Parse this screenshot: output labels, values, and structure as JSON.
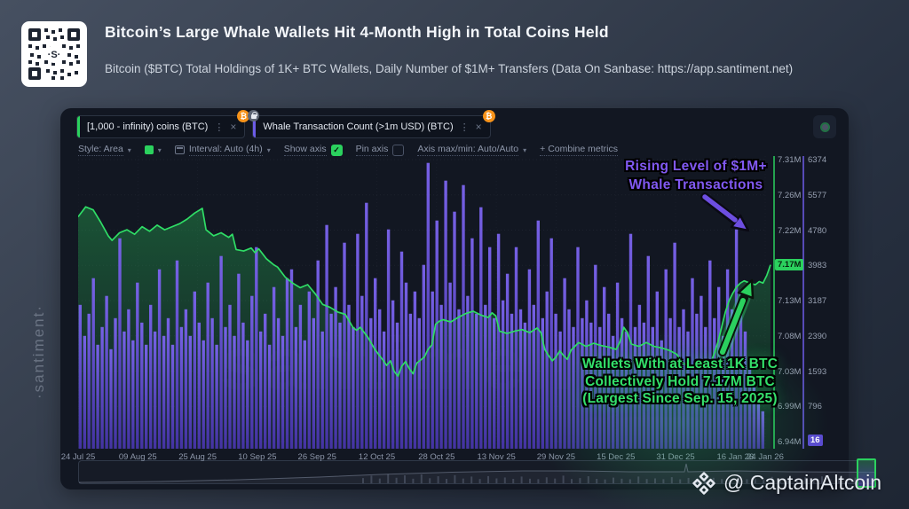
{
  "header": {
    "title": "Bitcoin’s Large Whale Wallets Hit 4-Month High in Total Coins Held",
    "subtitle": "Bitcoin ($BTC) Total Holdings of 1K+ BTC Wallets, Daily Number of $1M+ Transfers (Data On Sanbase: https://app.santiment.net)"
  },
  "panel": {
    "tabs": [
      {
        "label": "[1,000 - infinity) coins (BTC)",
        "accent": "#2bd15e",
        "badge": "₿",
        "locked": false
      },
      {
        "label": "Whale Transaction Count (>1m USD) (BTC)",
        "accent": "#6c5ce7",
        "badge": "₿",
        "locked": true
      }
    ],
    "toolbar": {
      "style_label": "Style: Area",
      "swatch_color": "#2bd15e",
      "interval_label": "Interval: Auto (4h)",
      "show_axis_label": "Show axis",
      "show_axis_checked": true,
      "pin_axis_label": "Pin axis",
      "pin_axis_checked": false,
      "axis_minmax_label": "Axis max/min: Auto/Auto",
      "combine_label": "+ Combine metrics"
    }
  },
  "chart_data": {
    "type": "area+bar",
    "x_range_days": 184,
    "x_tick_days": [
      0,
      16,
      32,
      48,
      64,
      80,
      96,
      112,
      128,
      144,
      160,
      176,
      184
    ],
    "x_tick_labels": [
      "24 Jul 25",
      "09 Aug 25",
      "25 Aug 25",
      "10 Sep 25",
      "26 Sep 25",
      "12 Oct 25",
      "28 Oct 25",
      "13 Nov 25",
      "29 Nov 25",
      "15 Dec 25",
      "31 Dec 25",
      "16 Jan 26",
      "24 Jan 26"
    ],
    "axes": {
      "holdings": {
        "color": "#2bd15e",
        "min": 6.94,
        "max": 7.31,
        "tick_labels": [
          "7.31M",
          "7.26M",
          "7.22M",
          "7.17M",
          "7.13M",
          "7.08M",
          "7.03M",
          "6.99M",
          "6.94M"
        ],
        "highlight_label": "7.17M",
        "current_value_m": 7.17
      },
      "transactions": {
        "color": "#6c5ce7",
        "min": 16,
        "max": 6374,
        "tick_labels": [
          "6374",
          "5577",
          "4780",
          "3983",
          "3187",
          "2390",
          "1593",
          "796",
          "16"
        ],
        "lowlight_label": "16"
      }
    },
    "series": [
      {
        "name": "[1,000 - infinity) coins (BTC)",
        "type": "area",
        "color": "#2bd15e",
        "unit": "M BTC",
        "points": [
          [
            0,
            7.235
          ],
          [
            2,
            7.248
          ],
          [
            4,
            7.244
          ],
          [
            6,
            7.228
          ],
          [
            8,
            7.21
          ],
          [
            9,
            7.204
          ],
          [
            11,
            7.214
          ],
          [
            13,
            7.218
          ],
          [
            15,
            7.212
          ],
          [
            17,
            7.222
          ],
          [
            19,
            7.216
          ],
          [
            21,
            7.224
          ],
          [
            23,
            7.218
          ],
          [
            25,
            7.222
          ],
          [
            27,
            7.226
          ],
          [
            29,
            7.232
          ],
          [
            31,
            7.24
          ],
          [
            33,
            7.246
          ],
          [
            34,
            7.218
          ],
          [
            36,
            7.21
          ],
          [
            38,
            7.214
          ],
          [
            40,
            7.208
          ],
          [
            41,
            7.212
          ],
          [
            42,
            7.192
          ],
          [
            44,
            7.19
          ],
          [
            46,
            7.194
          ],
          [
            47,
            7.188
          ],
          [
            48,
            7.193
          ],
          [
            50,
            7.18
          ],
          [
            51,
            7.176
          ],
          [
            52,
            7.172
          ],
          [
            53,
            7.169
          ],
          [
            55,
            7.156
          ],
          [
            57,
            7.148
          ],
          [
            59,
            7.142
          ],
          [
            61,
            7.146
          ],
          [
            63,
            7.134
          ],
          [
            65,
            7.12
          ],
          [
            67,
            7.116
          ],
          [
            69,
            7.11
          ],
          [
            71,
            7.107
          ],
          [
            73,
            7.09
          ],
          [
            74,
            7.086
          ],
          [
            75,
            7.09
          ],
          [
            77,
            7.077
          ],
          [
            79,
            7.06
          ],
          [
            81,
            7.047
          ],
          [
            82,
            7.04
          ],
          [
            83,
            7.046
          ],
          [
            84,
            7.032
          ],
          [
            85,
            7.026
          ],
          [
            86,
            7.039
          ],
          [
            87,
            7.045
          ],
          [
            88,
            7.036
          ],
          [
            89,
            7.029
          ],
          [
            90,
            7.043
          ],
          [
            91,
            7.047
          ],
          [
            92,
            7.051
          ],
          [
            93,
            7.061
          ],
          [
            94,
            7.067
          ],
          [
            95,
            7.094
          ],
          [
            96,
            7.098
          ],
          [
            97,
            7.1
          ],
          [
            99,
            7.097
          ],
          [
            101,
            7.103
          ],
          [
            103,
            7.108
          ],
          [
            105,
            7.111
          ],
          [
            107,
            7.106
          ],
          [
            109,
            7.103
          ],
          [
            110,
            7.109
          ],
          [
            111,
            7.105
          ],
          [
            112,
            7.085
          ],
          [
            114,
            7.082
          ],
          [
            116,
            7.085
          ],
          [
            118,
            7.087
          ],
          [
            120,
            7.083
          ],
          [
            122,
            7.089
          ],
          [
            123,
            7.083
          ],
          [
            124,
            7.061
          ],
          [
            125,
            7.053
          ],
          [
            126,
            7.046
          ],
          [
            127,
            7.051
          ],
          [
            128,
            7.059
          ],
          [
            129,
            7.053
          ],
          [
            130,
            7.048
          ],
          [
            131,
            7.06
          ],
          [
            132,
            7.065
          ],
          [
            133,
            7.07
          ],
          [
            135,
            7.065
          ],
          [
            137,
            7.069
          ],
          [
            139,
            7.066
          ],
          [
            141,
            7.064
          ],
          [
            143,
            7.061
          ],
          [
            144,
            7.071
          ],
          [
            145,
            7.09
          ],
          [
            146,
            7.083
          ],
          [
            147,
            7.068
          ],
          [
            149,
            7.065
          ],
          [
            151,
            7.07
          ],
          [
            153,
            7.065
          ],
          [
            155,
            7.063
          ],
          [
            157,
            7.06
          ],
          [
            159,
            7.055
          ],
          [
            161,
            7.042
          ],
          [
            163,
            7.038
          ],
          [
            165,
            7.04
          ],
          [
            167,
            7.044
          ],
          [
            168,
            7.042
          ],
          [
            169,
            7.055
          ],
          [
            170,
            7.07
          ],
          [
            171,
            7.09
          ],
          [
            172,
            7.11
          ],
          [
            173,
            7.125
          ],
          [
            174,
            7.135
          ],
          [
            175,
            7.143
          ],
          [
            176,
            7.148
          ],
          [
            177,
            7.151
          ],
          [
            178,
            7.149
          ],
          [
            179,
            7.147
          ],
          [
            180,
            7.146
          ],
          [
            181,
            7.15
          ],
          [
            182,
            7.148
          ],
          [
            183,
            7.158
          ],
          [
            184,
            7.172
          ]
        ]
      },
      {
        "name": "Whale Transaction Count (>1m USD) (BTC)",
        "type": "bar",
        "color": "#6c5ce7",
        "values": [
          3100,
          2400,
          2900,
          3700,
          2200,
          2600,
          3300,
          2100,
          2800,
          4600,
          2500,
          3000,
          2300,
          3600,
          2700,
          2200,
          3100,
          2500,
          3900,
          2400,
          2800,
          2200,
          4100,
          2600,
          3000,
          2400,
          3400,
          2700,
          2300,
          3600,
          2800,
          2200,
          4200,
          2600,
          3100,
          2400,
          3800,
          2700,
          2300,
          3300,
          4400,
          2500,
          2900,
          2200,
          3500,
          2800,
          2400,
          3700,
          3900,
          2600,
          3100,
          2300,
          3400,
          2800,
          4100,
          2500,
          4900,
          2900,
          3500,
          2700,
          4500,
          3100,
          2600,
          4700,
          3300,
          5400,
          2800,
          3700,
          3000,
          2500,
          4800,
          3200,
          2700,
          4300,
          3600,
          2900,
          3400,
          2800,
          4000,
          6300,
          3400,
          5000,
          3100,
          5900,
          3600,
          5200,
          3000,
          5800,
          3300,
          4600,
          2900,
          5300,
          3100,
          4400,
          2800,
          4700,
          3200,
          3800,
          2900,
          4400,
          3000,
          2700,
          3900,
          3100,
          5000,
          2800,
          3400,
          4600,
          2900,
          2500,
          3700,
          3000,
          2600,
          4400,
          2800,
          3200,
          2700,
          4000,
          2600,
          3500,
          2900,
          2400,
          3600,
          2800,
          2500,
          4700,
          2600,
          3100,
          2700,
          4200,
          2600,
          3400,
          2300,
          3900,
          2800,
          4500,
          2600,
          3000,
          2500,
          3700,
          2900,
          3300,
          2600,
          4100,
          2800,
          3500,
          2400,
          3900,
          3000,
          4800,
          3400,
          2500,
          1900,
          1300,
          900,
          700
        ]
      }
    ]
  },
  "annotations": {
    "transactions": {
      "line1": "Rising Level of $1M+",
      "line2": "Whale Transactions",
      "color": "#8159f2"
    },
    "holdings": {
      "line1": "Wallets With at Least 1K BTC",
      "line2": "Collectively Hold 7.17M BTC",
      "line3": "(Largest Since Sep. 15, 2025)",
      "color": "#35e06c"
    }
  },
  "side_watermark": "·santiment·",
  "ghost_watermark": "santiment",
  "credit": {
    "text": "@ CaptainAltcoin"
  }
}
